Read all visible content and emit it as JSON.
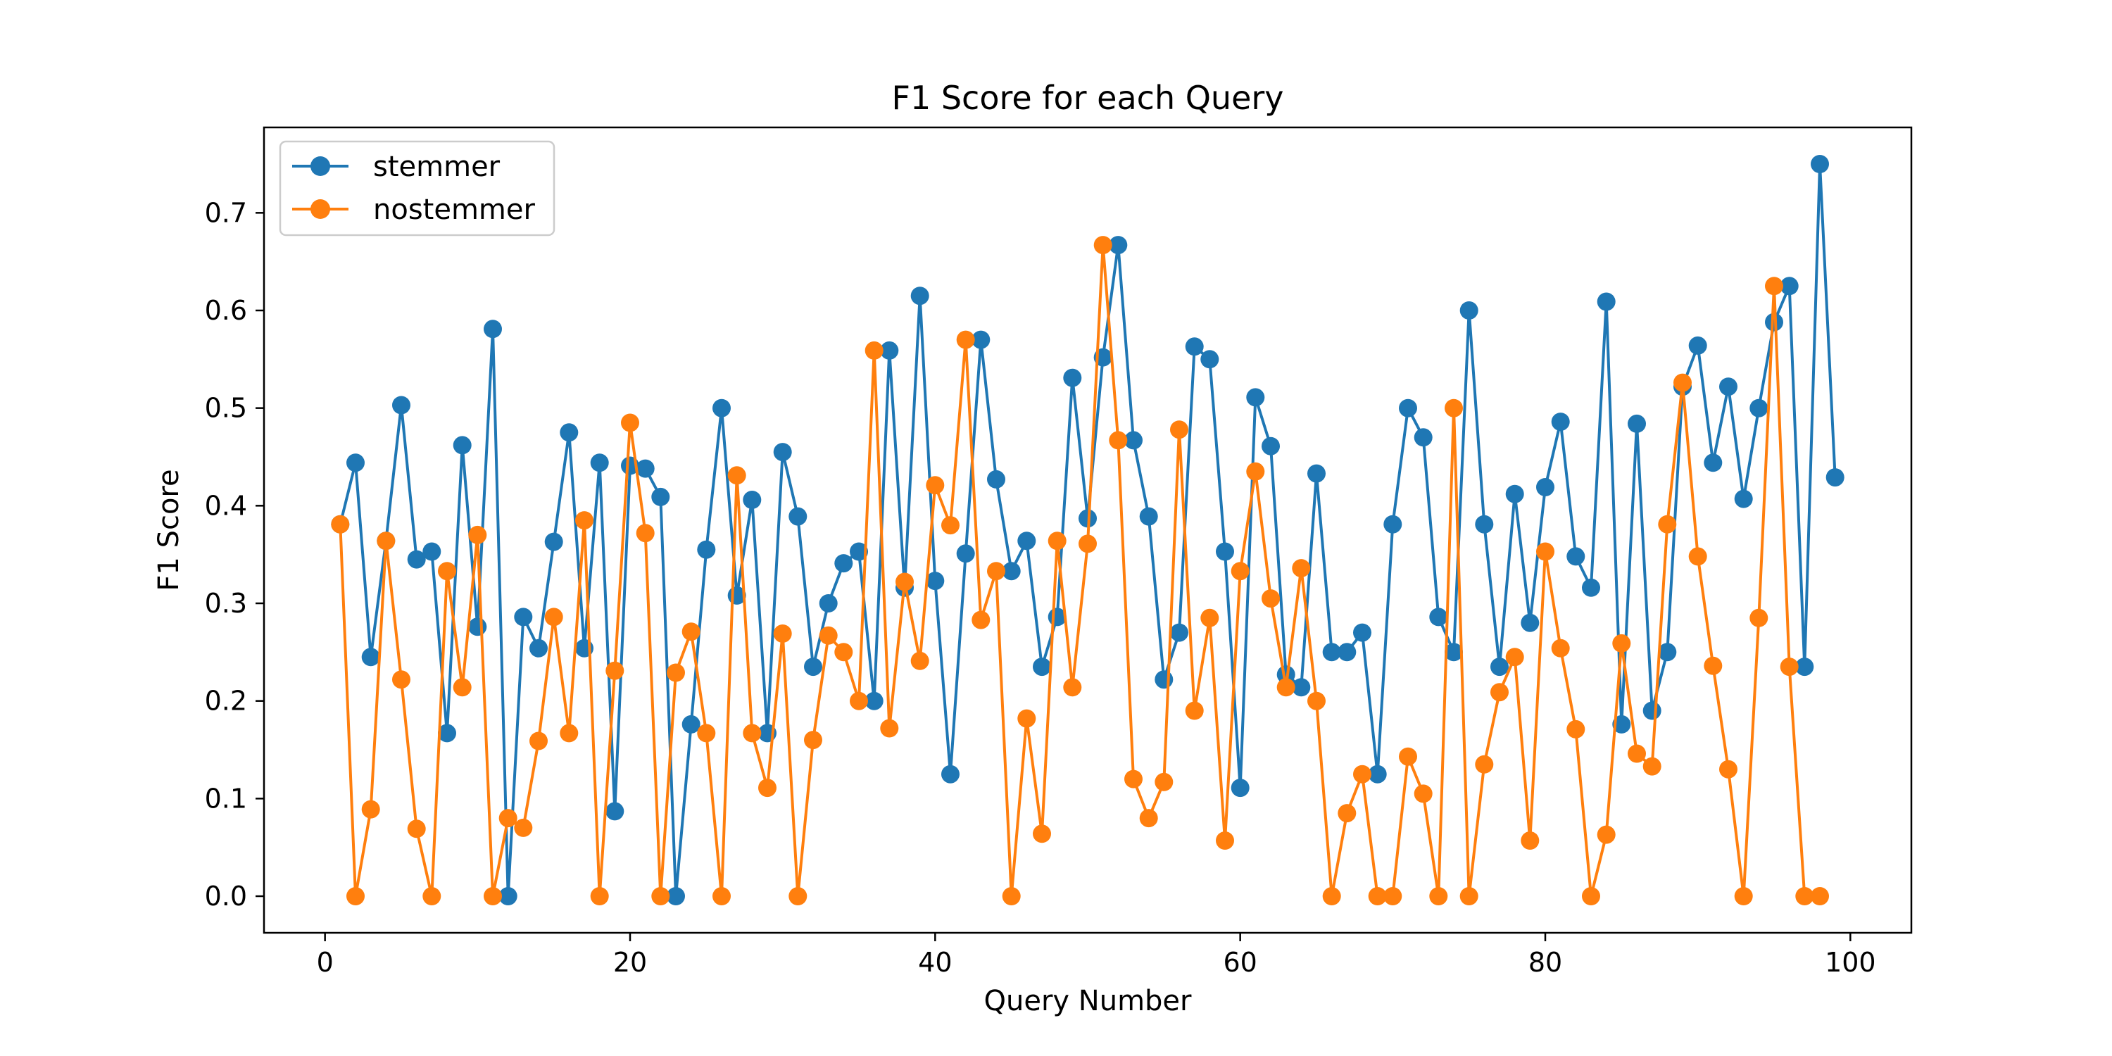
{
  "chart_data": {
    "type": "line",
    "title": "F1 Score for each Query",
    "xlabel": "Query Number",
    "ylabel": "F1 Score",
    "xlim": [
      -4,
      104
    ],
    "ylim": [
      -0.0375,
      0.7875
    ],
    "xticks": [
      0,
      20,
      40,
      60,
      80,
      100
    ],
    "yticks": [
      0.0,
      0.1,
      0.2,
      0.3,
      0.4,
      0.5,
      0.6,
      0.7
    ],
    "grid": false,
    "legend_position": "upper left",
    "x": [
      1,
      2,
      3,
      4,
      5,
      6,
      7,
      8,
      9,
      10,
      11,
      12,
      13,
      14,
      15,
      16,
      17,
      18,
      19,
      20,
      21,
      22,
      23,
      24,
      25,
      26,
      27,
      28,
      29,
      30,
      31,
      32,
      33,
      34,
      35,
      36,
      37,
      38,
      39,
      40,
      41,
      42,
      43,
      44,
      45,
      46,
      47,
      48,
      49,
      50,
      51,
      52,
      53,
      54,
      55,
      56,
      57,
      58,
      59,
      60,
      61,
      62,
      63,
      64,
      65,
      66,
      67,
      68,
      69,
      70,
      71,
      72,
      73,
      74,
      75,
      76,
      77,
      78,
      79,
      80,
      81,
      82,
      83,
      84,
      85,
      86,
      87,
      88,
      89,
      90,
      91,
      92,
      93,
      94,
      95,
      96,
      97,
      98,
      99
    ],
    "series": [
      {
        "name": "stemmer",
        "color": "#1f77b4",
        "values": [
          0.381,
          0.444,
          0.245,
          0.364,
          0.503,
          0.345,
          0.353,
          0.167,
          0.462,
          0.276,
          0.581,
          0.0,
          0.286,
          0.254,
          0.363,
          0.475,
          0.254,
          0.444,
          0.087,
          0.441,
          0.438,
          0.409,
          0.0,
          0.176,
          0.355,
          0.5,
          0.308,
          0.406,
          0.167,
          0.455,
          0.389,
          0.235,
          0.3,
          0.341,
          0.353,
          0.2,
          0.559,
          0.316,
          0.615,
          0.323,
          0.125,
          0.351,
          0.57,
          0.427,
          0.333,
          0.364,
          0.235,
          0.286,
          0.531,
          0.387,
          0.552,
          0.667,
          0.467,
          0.389,
          0.222,
          0.27,
          0.563,
          0.55,
          0.353,
          0.111,
          0.511,
          0.461,
          0.227,
          0.214,
          0.433,
          0.25,
          0.25,
          0.27,
          0.125,
          0.381,
          0.5,
          0.47,
          0.286,
          0.25,
          0.6,
          0.381,
          0.235,
          0.412,
          0.28,
          0.419,
          0.486,
          0.348,
          0.316,
          0.609,
          0.176,
          0.484,
          0.19,
          0.25,
          0.522,
          0.564,
          0.444,
          0.522,
          0.407,
          0.5,
          0.588,
          0.625,
          0.235,
          0.75,
          0.429
        ]
      },
      {
        "name": "nostemmer",
        "color": "#ff7f0e",
        "values": [
          0.381,
          0.0,
          0.089,
          0.364,
          0.222,
          0.069,
          0.0,
          0.333,
          0.214,
          0.37,
          0.0,
          0.08,
          0.07,
          0.159,
          0.286,
          0.167,
          0.385,
          0.0,
          0.231,
          0.485,
          0.372,
          0.0,
          0.229,
          0.271,
          0.167,
          0.0,
          0.431,
          0.167,
          0.111,
          0.269,
          0.0,
          0.16,
          0.267,
          0.25,
          0.2,
          0.559,
          0.172,
          0.322,
          0.241,
          0.421,
          0.38,
          0.57,
          0.283,
          0.333,
          0.0,
          0.182,
          0.064,
          0.364,
          0.214,
          0.361,
          0.667,
          0.467,
          0.12,
          0.08,
          0.117,
          0.478,
          0.19,
          0.285,
          0.057,
          0.333,
          0.435,
          0.305,
          0.214,
          0.336,
          0.2,
          0.0,
          0.085,
          0.125,
          0.0,
          0.0,
          0.143,
          0.105,
          0.0,
          0.5,
          0.0,
          0.135,
          0.209,
          0.245,
          0.057,
          0.353,
          0.254,
          0.171,
          0.0,
          0.063,
          0.259,
          0.146,
          0.133,
          0.381,
          0.526,
          0.348,
          0.236,
          0.13,
          0.0,
          0.285,
          0.625,
          0.235,
          0.0,
          0.0,
          null
        ]
      }
    ]
  }
}
